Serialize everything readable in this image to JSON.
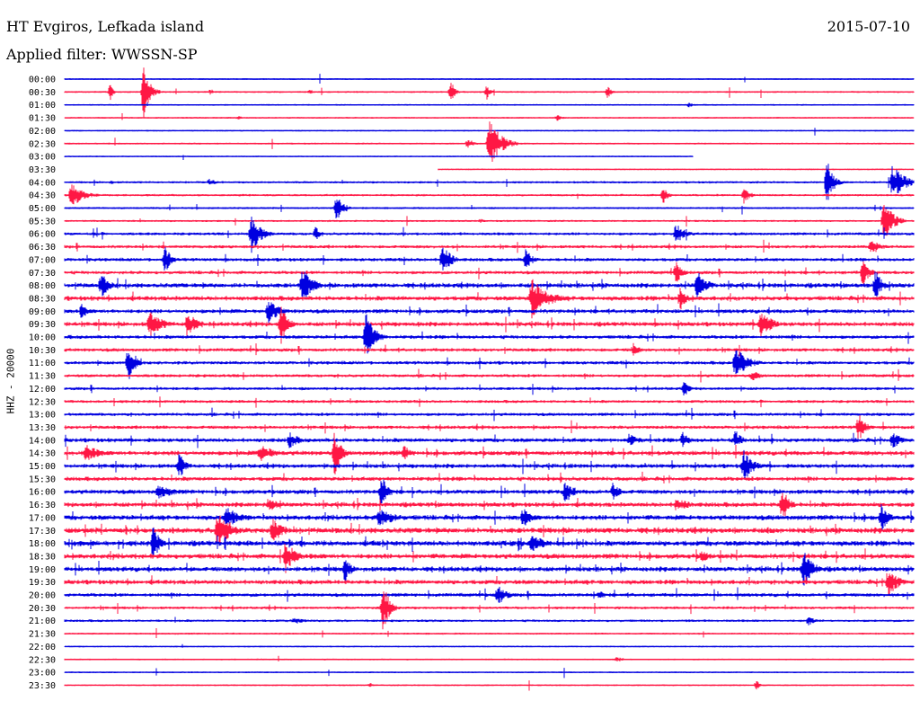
{
  "header": {
    "station": "HT Evgiros, Lefkada island",
    "date": "2015-07-10",
    "filter": "Applied filter: WWSSN-SP"
  },
  "chart_data": {
    "type": "line",
    "title": "HT Evgiros, Lefkada island",
    "ylabel": "HHZ - 20000",
    "colors": [
      "#0000e0",
      "#ff1744"
    ],
    "rows": [
      {
        "time": "00:00",
        "color": "#0000e0",
        "activity": 0.05,
        "end": 1.0
      },
      {
        "time": "00:30",
        "color": "#ff1744",
        "activity": 0.1,
        "end": 1.0
      },
      {
        "time": "01:00",
        "color": "#0000e0",
        "activity": 0.05,
        "end": 1.0
      },
      {
        "time": "01:30",
        "color": "#ff1744",
        "activity": 0.06,
        "end": 1.0
      },
      {
        "time": "02:00",
        "color": "#0000e0",
        "activity": 0.03,
        "end": 1.0
      },
      {
        "time": "02:30",
        "color": "#ff1744",
        "activity": 0.08,
        "end": 1.0
      },
      {
        "time": "03:00",
        "color": "#0000e0",
        "activity": 0.02,
        "end": 0.74
      },
      {
        "time": "03:30",
        "color": "#ff1744",
        "activity": 0.02,
        "start": 0.44,
        "end": 1.0
      },
      {
        "time": "04:00",
        "color": "#0000e0",
        "activity": 0.2,
        "end": 1.0
      },
      {
        "time": "04:30",
        "color": "#ff1744",
        "activity": 0.2,
        "end": 1.0
      },
      {
        "time": "05:00",
        "color": "#0000e0",
        "activity": 0.15,
        "end": 1.0
      },
      {
        "time": "05:30",
        "color": "#ff1744",
        "activity": 0.15,
        "end": 1.0
      },
      {
        "time": "06:00",
        "color": "#0000e0",
        "activity": 0.35,
        "end": 1.0
      },
      {
        "time": "06:30",
        "color": "#ff1744",
        "activity": 0.4,
        "end": 1.0
      },
      {
        "time": "07:00",
        "color": "#0000e0",
        "activity": 0.45,
        "end": 1.0
      },
      {
        "time": "07:30",
        "color": "#ff1744",
        "activity": 0.45,
        "end": 1.0
      },
      {
        "time": "08:00",
        "color": "#0000e0",
        "activity": 0.7,
        "end": 1.0
      },
      {
        "time": "08:30",
        "color": "#ff1744",
        "activity": 0.7,
        "end": 1.0
      },
      {
        "time": "09:00",
        "color": "#0000e0",
        "activity": 0.6,
        "end": 1.0
      },
      {
        "time": "09:30",
        "color": "#ff1744",
        "activity": 0.65,
        "end": 1.0
      },
      {
        "time": "10:00",
        "color": "#0000e0",
        "activity": 0.5,
        "end": 1.0
      },
      {
        "time": "10:30",
        "color": "#ff1744",
        "activity": 0.45,
        "end": 1.0
      },
      {
        "time": "11:00",
        "color": "#0000e0",
        "activity": 0.45,
        "end": 1.0
      },
      {
        "time": "11:30",
        "color": "#ff1744",
        "activity": 0.4,
        "end": 1.0
      },
      {
        "time": "12:00",
        "color": "#0000e0",
        "activity": 0.35,
        "end": 1.0
      },
      {
        "time": "12:30",
        "color": "#ff1744",
        "activity": 0.35,
        "end": 1.0
      },
      {
        "time": "13:00",
        "color": "#0000e0",
        "activity": 0.4,
        "end": 1.0
      },
      {
        "time": "13:30",
        "color": "#ff1744",
        "activity": 0.45,
        "end": 1.0
      },
      {
        "time": "14:00",
        "color": "#0000e0",
        "activity": 0.6,
        "end": 1.0
      },
      {
        "time": "14:30",
        "color": "#ff1744",
        "activity": 0.7,
        "end": 1.0
      },
      {
        "time": "15:00",
        "color": "#0000e0",
        "activity": 0.6,
        "end": 1.0
      },
      {
        "time": "15:30",
        "color": "#ff1744",
        "activity": 0.6,
        "end": 1.0
      },
      {
        "time": "16:00",
        "color": "#0000e0",
        "activity": 0.65,
        "end": 1.0
      },
      {
        "time": "16:30",
        "color": "#ff1744",
        "activity": 0.7,
        "end": 1.0
      },
      {
        "time": "17:00",
        "color": "#0000e0",
        "activity": 0.8,
        "end": 1.0
      },
      {
        "time": "17:30",
        "color": "#ff1744",
        "activity": 0.9,
        "end": 1.0
      },
      {
        "time": "18:00",
        "color": "#0000e0",
        "activity": 0.85,
        "end": 1.0
      },
      {
        "time": "18:30",
        "color": "#ff1744",
        "activity": 0.8,
        "end": 1.0
      },
      {
        "time": "19:00",
        "color": "#0000e0",
        "activity": 0.75,
        "end": 1.0
      },
      {
        "time": "19:30",
        "color": "#ff1744",
        "activity": 0.7,
        "end": 1.0
      },
      {
        "time": "20:00",
        "color": "#0000e0",
        "activity": 0.5,
        "end": 1.0
      },
      {
        "time": "20:30",
        "color": "#ff1744",
        "activity": 0.3,
        "end": 1.0
      },
      {
        "time": "21:00",
        "color": "#0000e0",
        "activity": 0.25,
        "end": 1.0
      },
      {
        "time": "21:30",
        "color": "#ff1744",
        "activity": 0.12,
        "end": 1.0
      },
      {
        "time": "22:00",
        "color": "#0000e0",
        "activity": 0.05,
        "end": 1.0
      },
      {
        "time": "22:30",
        "color": "#ff1744",
        "activity": 0.05,
        "end": 1.0
      },
      {
        "time": "23:00",
        "color": "#0000e0",
        "activity": 0.05,
        "end": 1.0
      },
      {
        "time": "23:30",
        "color": "#ff1744",
        "activity": 0.06,
        "end": 1.0
      }
    ],
    "events": [
      {
        "row": "00:30",
        "t": 0.054,
        "amp": 10,
        "len": 0.01
      },
      {
        "row": "00:30",
        "t": 0.093,
        "amp": 30,
        "len": 0.02
      },
      {
        "row": "00:30",
        "t": 0.172,
        "amp": 4,
        "len": 0.01
      },
      {
        "row": "00:30",
        "t": 0.289,
        "amp": 4,
        "len": 0.01
      },
      {
        "row": "00:30",
        "t": 0.455,
        "amp": 14,
        "len": 0.012
      },
      {
        "row": "00:30",
        "t": 0.497,
        "amp": 10,
        "len": 0.012
      },
      {
        "row": "00:30",
        "t": 0.64,
        "amp": 8,
        "len": 0.01
      },
      {
        "row": "01:00",
        "t": 0.735,
        "amp": 3,
        "len": 0.02
      },
      {
        "row": "01:30",
        "t": 0.205,
        "amp": 4,
        "len": 0.01
      },
      {
        "row": "01:30",
        "t": 0.58,
        "amp": 4,
        "len": 0.02
      },
      {
        "row": "02:30",
        "t": 0.5,
        "amp": 30,
        "len": 0.035
      },
      {
        "row": "02:30",
        "t": 0.475,
        "amp": 6,
        "len": 0.02
      },
      {
        "row": "04:00",
        "t": 0.055,
        "amp": 3,
        "len": 0.01
      },
      {
        "row": "04:00",
        "t": 0.17,
        "amp": 4,
        "len": 0.03
      },
      {
        "row": "04:00",
        "t": 0.898,
        "amp": 26,
        "len": 0.02
      },
      {
        "row": "04:00",
        "t": 0.975,
        "amp": 20,
        "len": 0.04
      },
      {
        "row": "04:30",
        "t": 0.008,
        "amp": 14,
        "len": 0.04
      },
      {
        "row": "04:30",
        "t": 0.705,
        "amp": 10,
        "len": 0.015
      },
      {
        "row": "04:30",
        "t": 0.8,
        "amp": 10,
        "len": 0.02
      },
      {
        "row": "05:00",
        "t": 0.32,
        "amp": 16,
        "len": 0.02
      },
      {
        "row": "05:30",
        "t": 0.965,
        "amp": 24,
        "len": 0.03
      },
      {
        "row": "05:30",
        "t": 0.49,
        "amp": 3,
        "len": 0.01
      },
      {
        "row": "06:00",
        "t": 0.22,
        "amp": 22,
        "len": 0.03
      },
      {
        "row": "06:00",
        "t": 0.296,
        "amp": 10,
        "len": 0.01
      },
      {
        "row": "06:00",
        "t": 0.72,
        "amp": 12,
        "len": 0.03
      },
      {
        "row": "06:30",
        "t": 0.95,
        "amp": 10,
        "len": 0.03
      },
      {
        "row": "07:00",
        "t": 0.118,
        "amp": 16,
        "len": 0.02
      },
      {
        "row": "07:00",
        "t": 0.445,
        "amp": 20,
        "len": 0.025
      },
      {
        "row": "07:00",
        "t": 0.543,
        "amp": 14,
        "len": 0.02
      },
      {
        "row": "07:30",
        "t": 0.72,
        "amp": 14,
        "len": 0.02
      },
      {
        "row": "07:30",
        "t": 0.94,
        "amp": 16,
        "len": 0.02
      },
      {
        "row": "08:00",
        "t": 0.043,
        "amp": 16,
        "len": 0.025
      },
      {
        "row": "08:00",
        "t": 0.28,
        "amp": 22,
        "len": 0.03
      },
      {
        "row": "08:00",
        "t": 0.745,
        "amp": 18,
        "len": 0.03
      },
      {
        "row": "08:00",
        "t": 0.955,
        "amp": 20,
        "len": 0.02
      },
      {
        "row": "08:30",
        "t": 0.55,
        "amp": 24,
        "len": 0.05
      },
      {
        "row": "08:30",
        "t": 0.725,
        "amp": 14,
        "len": 0.02
      },
      {
        "row": "09:00",
        "t": 0.02,
        "amp": 10,
        "len": 0.02
      },
      {
        "row": "09:00",
        "t": 0.24,
        "amp": 16,
        "len": 0.03
      },
      {
        "row": "09:30",
        "t": 0.1,
        "amp": 16,
        "len": 0.04
      },
      {
        "row": "09:30",
        "t": 0.145,
        "amp": 18,
        "len": 0.025
      },
      {
        "row": "09:30",
        "t": 0.255,
        "amp": 24,
        "len": 0.02
      },
      {
        "row": "09:30",
        "t": 0.82,
        "amp": 20,
        "len": 0.03
      },
      {
        "row": "10:00",
        "t": 0.355,
        "amp": 30,
        "len": 0.025
      },
      {
        "row": "10:30",
        "t": 0.67,
        "amp": 8,
        "len": 0.02
      },
      {
        "row": "11:00",
        "t": 0.075,
        "amp": 22,
        "len": 0.02
      },
      {
        "row": "11:00",
        "t": 0.79,
        "amp": 18,
        "len": 0.04
      },
      {
        "row": "11:30",
        "t": 0.81,
        "amp": 6,
        "len": 0.03
      },
      {
        "row": "12:00",
        "t": 0.73,
        "amp": 10,
        "len": 0.015
      },
      {
        "row": "13:30",
        "t": 0.935,
        "amp": 18,
        "len": 0.02
      },
      {
        "row": "14:00",
        "t": 0.265,
        "amp": 10,
        "len": 0.03
      },
      {
        "row": "14:00",
        "t": 0.665,
        "amp": 8,
        "len": 0.03
      },
      {
        "row": "14:00",
        "t": 0.728,
        "amp": 10,
        "len": 0.02
      },
      {
        "row": "14:00",
        "t": 0.79,
        "amp": 12,
        "len": 0.02
      },
      {
        "row": "14:00",
        "t": 0.975,
        "amp": 10,
        "len": 0.03
      },
      {
        "row": "14:30",
        "t": 0.025,
        "amp": 10,
        "len": 0.05
      },
      {
        "row": "14:30",
        "t": 0.23,
        "amp": 10,
        "len": 0.05
      },
      {
        "row": "14:30",
        "t": 0.318,
        "amp": 26,
        "len": 0.02
      },
      {
        "row": "14:30",
        "t": 0.4,
        "amp": 10,
        "len": 0.02
      },
      {
        "row": "15:00",
        "t": 0.135,
        "amp": 16,
        "len": 0.02
      },
      {
        "row": "15:00",
        "t": 0.8,
        "amp": 18,
        "len": 0.03
      },
      {
        "row": "16:00",
        "t": 0.11,
        "amp": 8,
        "len": 0.06
      },
      {
        "row": "16:00",
        "t": 0.373,
        "amp": 20,
        "len": 0.02
      },
      {
        "row": "16:00",
        "t": 0.59,
        "amp": 16,
        "len": 0.02
      },
      {
        "row": "16:00",
        "t": 0.646,
        "amp": 12,
        "len": 0.02
      },
      {
        "row": "16:30",
        "t": 0.845,
        "amp": 22,
        "len": 0.02
      },
      {
        "row": "16:30",
        "t": 0.24,
        "amp": 8,
        "len": 0.04
      },
      {
        "row": "16:30",
        "t": 0.72,
        "amp": 8,
        "len": 0.05
      },
      {
        "row": "17:00",
        "t": 0.19,
        "amp": 14,
        "len": 0.04
      },
      {
        "row": "17:00",
        "t": 0.37,
        "amp": 12,
        "len": 0.05
      },
      {
        "row": "17:00",
        "t": 0.54,
        "amp": 12,
        "len": 0.03
      },
      {
        "row": "17:00",
        "t": 0.962,
        "amp": 18,
        "len": 0.02
      },
      {
        "row": "17:30",
        "t": 0.18,
        "amp": 22,
        "len": 0.04
      },
      {
        "row": "17:30",
        "t": 0.245,
        "amp": 16,
        "len": 0.03
      },
      {
        "row": "18:00",
        "t": 0.104,
        "amp": 22,
        "len": 0.02
      },
      {
        "row": "18:00",
        "t": 0.55,
        "amp": 10,
        "len": 0.05
      },
      {
        "row": "18:30",
        "t": 0.26,
        "amp": 20,
        "len": 0.03
      },
      {
        "row": "18:30",
        "t": 0.75,
        "amp": 8,
        "len": 0.03
      },
      {
        "row": "19:00",
        "t": 0.33,
        "amp": 16,
        "len": 0.02
      },
      {
        "row": "19:00",
        "t": 0.87,
        "amp": 22,
        "len": 0.03
      },
      {
        "row": "19:30",
        "t": 0.97,
        "amp": 18,
        "len": 0.03
      },
      {
        "row": "20:00",
        "t": 0.51,
        "amp": 12,
        "len": 0.03
      },
      {
        "row": "20:00",
        "t": 0.63,
        "amp": 6,
        "len": 0.02
      },
      {
        "row": "20:30",
        "t": 0.375,
        "amp": 30,
        "len": 0.02
      },
      {
        "row": "21:00",
        "t": 0.876,
        "amp": 6,
        "len": 0.02
      },
      {
        "row": "21:00",
        "t": 0.27,
        "amp": 4,
        "len": 0.04
      },
      {
        "row": "22:30",
        "t": 0.65,
        "amp": 3,
        "len": 0.03
      },
      {
        "row": "23:30",
        "t": 0.815,
        "amp": 6,
        "len": 0.01
      },
      {
        "row": "23:30",
        "t": 0.36,
        "amp": 3,
        "len": 0.01
      }
    ]
  }
}
